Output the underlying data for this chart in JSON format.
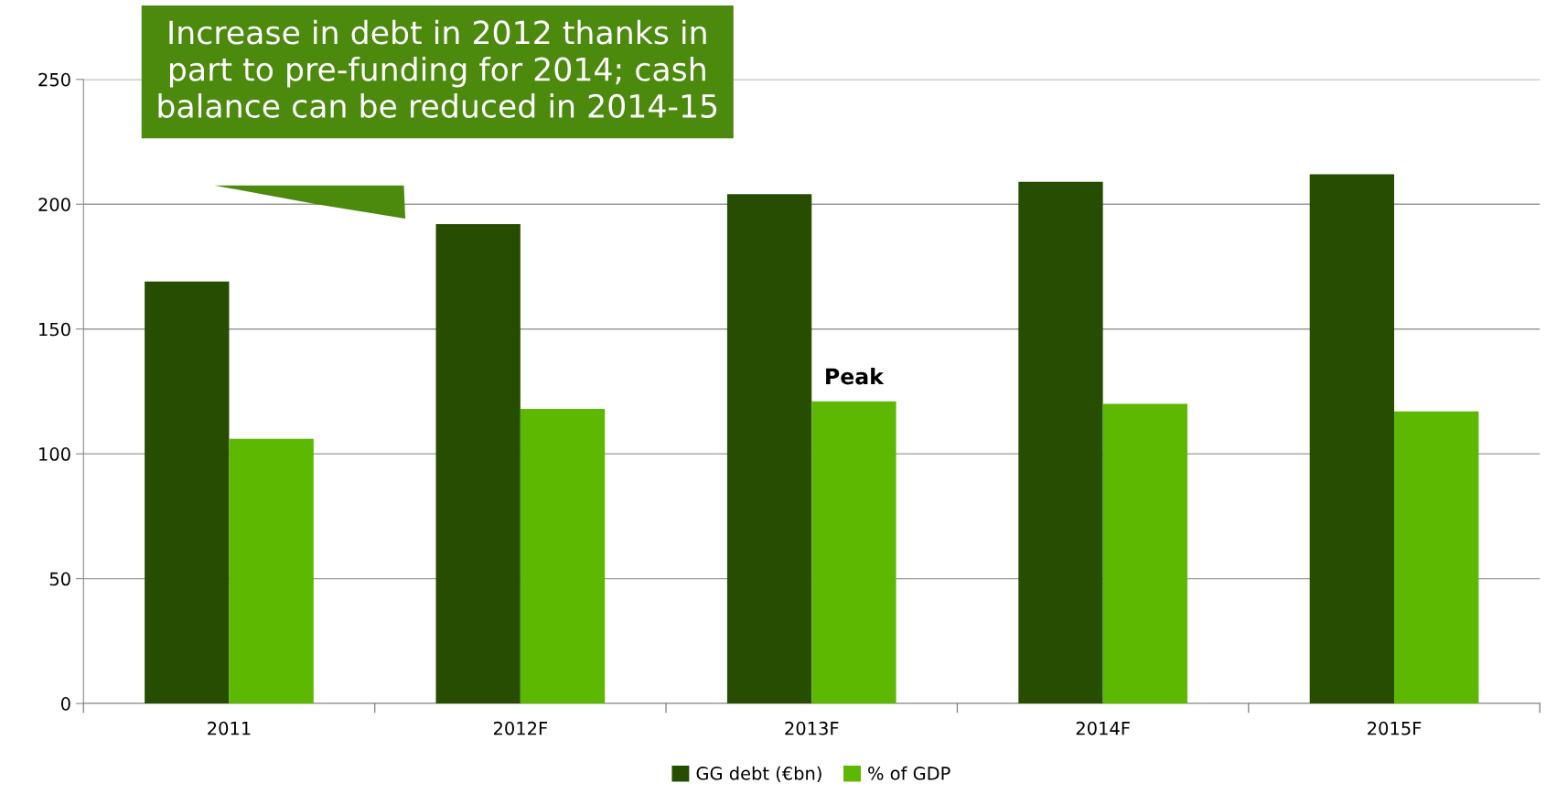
{
  "chart_data": {
    "type": "bar",
    "categories": [
      "2011",
      "2012F",
      "2013F",
      "2014F",
      "2015F"
    ],
    "series": [
      {
        "name": "GG debt (€bn)",
        "color": "#264d00",
        "values": [
          169,
          192,
          204,
          209,
          212
        ]
      },
      {
        "name": "% of GDP",
        "color": "#5cb800",
        "values": [
          106,
          118,
          121,
          120,
          117
        ]
      }
    ],
    "ylim": [
      0,
      250
    ],
    "yticks": [
      0,
      50,
      100,
      150,
      200,
      250
    ],
    "grid": "y",
    "legend": "bottom",
    "annotations": [
      "Increase in debt in 2012 thanks in part to pre-funding for 2014; cash balance can be reduced in 2014-15",
      {
        "text": "Peak",
        "x": "2013F",
        "y": 121
      }
    ]
  }
}
